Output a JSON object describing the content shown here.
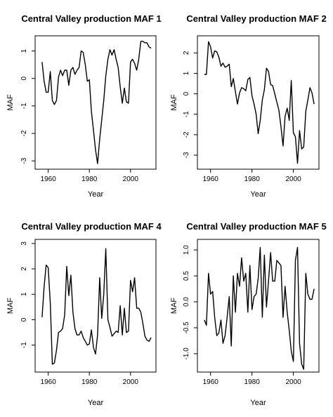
{
  "chart_data": [
    {
      "type": "line",
      "title": "Central Valley production MAF 1",
      "xlabel": "Year",
      "ylabel": "MAF",
      "xlim": [
        1955,
        2011
      ],
      "ylim": [
        -3.2,
        1.45
      ],
      "xticks": [
        "1960",
        "1980",
        "2000"
      ],
      "xtick_values": [
        1960,
        1980,
        2000
      ],
      "yticks": [
        "-3",
        "-2",
        "-1",
        "0",
        "1"
      ],
      "ytick_values": [
        -3,
        -2,
        -1,
        0,
        1
      ],
      "x": [
        1957,
        1958,
        1959,
        1960,
        1961,
        1962,
        1963,
        1964,
        1965,
        1966,
        1967,
        1968,
        1969,
        1970,
        1971,
        1972,
        1973,
        1974,
        1975,
        1976,
        1977,
        1978,
        1979,
        1980,
        1981,
        1982,
        1983,
        1984,
        1985,
        1986,
        1987,
        1988,
        1989,
        1990,
        1991,
        1992,
        1993,
        1994,
        1995,
        1996,
        1997,
        1998,
        1999,
        2000,
        2001,
        2002,
        2003,
        2004,
        2005,
        2006,
        2007,
        2008,
        2009,
        2010
      ],
      "y": [
        0.6,
        -0.1,
        -0.5,
        -0.5,
        0.25,
        -0.8,
        -0.95,
        -0.8,
        0.05,
        0.3,
        0.1,
        0.3,
        0.3,
        -0.25,
        0.3,
        0.4,
        0.15,
        0.3,
        0.4,
        1.0,
        0.95,
        0.5,
        -0.1,
        -0.05,
        -1.2,
        -1.9,
        -2.6,
        -3.1,
        -2.2,
        -1.5,
        -0.8,
        0.1,
        0.7,
        1.05,
        0.85,
        1.05,
        0.7,
        0.4,
        -0.3,
        -0.9,
        -0.35,
        -0.85,
        -0.9,
        0.6,
        0.7,
        0.55,
        0.3,
        0.7,
        1.35,
        1.35,
        1.3,
        1.3,
        1.15,
        1.1
      ]
    },
    {
      "type": "line",
      "title": "Central Valley production MAF 2",
      "xlabel": "Year",
      "ylabel": "MAF",
      "xlim": [
        1955,
        2011
      ],
      "ylim": [
        -3.55,
        2.7
      ],
      "xticks": [
        "1960",
        "1980",
        "2000"
      ],
      "xtick_values": [
        1960,
        1980,
        2000
      ],
      "yticks": [
        "-3",
        "-2",
        "-1",
        "0",
        "1",
        "2"
      ],
      "ytick_values": [
        -3,
        -2,
        -1,
        0,
        1,
        2
      ],
      "x": [
        1957,
        1958,
        1959,
        1960,
        1961,
        1962,
        1963,
        1964,
        1965,
        1966,
        1967,
        1968,
        1969,
        1970,
        1971,
        1972,
        1973,
        1974,
        1975,
        1976,
        1977,
        1978,
        1979,
        1980,
        1981,
        1982,
        1983,
        1984,
        1985,
        1986,
        1987,
        1988,
        1989,
        1990,
        1991,
        1992,
        1993,
        1994,
        1995,
        1996,
        1997,
        1998,
        1999,
        2000,
        2001,
        2002,
        2003,
        2004,
        2005,
        2006,
        2007,
        2008,
        2009,
        2010
      ],
      "y": [
        0.95,
        0.95,
        2.55,
        2.3,
        1.75,
        2.1,
        2.05,
        1.8,
        1.35,
        1.5,
        1.3,
        1.35,
        1.45,
        0.35,
        0.75,
        0.1,
        -0.5,
        0.05,
        0.3,
        0.25,
        0.15,
        0.7,
        0.8,
        -0.1,
        -0.5,
        -1.0,
        -1.95,
        -1.3,
        -0.3,
        0.2,
        1.25,
        1.1,
        0.45,
        0.4,
        0.0,
        -0.4,
        -0.8,
        -1.6,
        -2.55,
        -1.1,
        -0.7,
        -1.3,
        0.65,
        -1.9,
        -2.1,
        -3.4,
        -1.8,
        -2.7,
        -2.6,
        -0.85,
        -0.3,
        0.3,
        0.05,
        -0.5
      ]
    },
    {
      "type": "line",
      "title": "Central Valley production MAF 4",
      "xlabel": "Year",
      "ylabel": "MAF",
      "xlim": [
        1955,
        2011
      ],
      "ylim": [
        -1.95,
        3.05
      ],
      "xticks": [
        "1960",
        "1980",
        "2000"
      ],
      "xtick_values": [
        1960,
        1980,
        2000
      ],
      "yticks": [
        "-1",
        "0",
        "1",
        "2",
        "3"
      ],
      "ytick_values": [
        -1,
        0,
        1,
        2,
        3
      ],
      "x": [
        1957,
        1958,
        1959,
        1960,
        1961,
        1962,
        1963,
        1964,
        1965,
        1966,
        1967,
        1968,
        1969,
        1970,
        1971,
        1972,
        1973,
        1974,
        1975,
        1976,
        1977,
        1978,
        1979,
        1980,
        1981,
        1982,
        1983,
        1984,
        1985,
        1986,
        1987,
        1988,
        1989,
        1990,
        1991,
        1992,
        1993,
        1994,
        1995,
        1996,
        1997,
        1998,
        1999,
        2000,
        2001,
        2002,
        2003,
        2004,
        2005,
        2006,
        2007,
        2008,
        2009,
        2010
      ],
      "y": [
        0.1,
        1.3,
        2.15,
        2.05,
        0.65,
        -1.75,
        -1.7,
        -1.2,
        -0.5,
        -0.45,
        -0.35,
        0.2,
        2.1,
        0.95,
        1.75,
        0.3,
        -0.35,
        -0.6,
        -0.6,
        -0.45,
        -0.7,
        -0.85,
        -1.0,
        -0.95,
        -0.4,
        -1.1,
        -1.35,
        -0.6,
        1.65,
        0.05,
        1.0,
        2.8,
        0.0,
        -0.3,
        -0.65,
        -0.55,
        -0.45,
        -0.5,
        0.55,
        -0.6,
        0.45,
        -0.5,
        -0.45,
        1.55,
        1.1,
        1.65,
        0.45,
        0.45,
        0.3,
        -0.15,
        -0.65,
        -0.8,
        -0.85,
        -0.7
      ]
    },
    {
      "type": "line",
      "title": "Central Valley production MAF 5",
      "xlabel": "Year",
      "ylabel": "MAF",
      "xlim": [
        1955,
        2011
      ],
      "ylim": [
        -1.3,
        1.15
      ],
      "xticks": [
        "1960",
        "1980",
        "2000"
      ],
      "xtick_values": [
        1960,
        1980,
        2000
      ],
      "yticks": [
        "-1.0",
        "-0.5",
        "0.0",
        "0.5",
        "1.0"
      ],
      "ytick_values": [
        -1.0,
        -0.5,
        0.0,
        0.5,
        1.0
      ],
      "x": [
        1957,
        1958,
        1959,
        1960,
        1961,
        1962,
        1963,
        1964,
        1965,
        1966,
        1967,
        1968,
        1969,
        1970,
        1971,
        1972,
        1973,
        1974,
        1975,
        1976,
        1977,
        1978,
        1979,
        1980,
        1981,
        1982,
        1983,
        1984,
        1985,
        1986,
        1987,
        1988,
        1989,
        1990,
        1991,
        1992,
        1993,
        1994,
        1995,
        1996,
        1997,
        1998,
        1999,
        2000,
        2001,
        2002,
        2003,
        2004,
        2005,
        2006,
        2007,
        2008,
        2009,
        2010
      ],
      "y": [
        -0.35,
        -0.45,
        0.55,
        0.15,
        0.2,
        -0.3,
        -0.65,
        -0.6,
        -0.35,
        -0.8,
        -0.65,
        -0.3,
        0.1,
        -0.85,
        0.5,
        -0.2,
        0.55,
        0.3,
        0.85,
        0.4,
        0.55,
        -0.2,
        0.7,
        -0.15,
        0.1,
        0.15,
        0.45,
        1.05,
        -0.3,
        0.9,
        -0.1,
        0.4,
        0.95,
        0.4,
        0.4,
        0.8,
        0.75,
        0.7,
        -0.3,
        0.3,
        -0.2,
        -0.55,
        -0.95,
        -1.15,
        0.8,
        1.05,
        -0.8,
        -1.2,
        -1.3,
        0.55,
        0.15,
        0.05,
        0.05,
        0.25
      ]
    }
  ]
}
